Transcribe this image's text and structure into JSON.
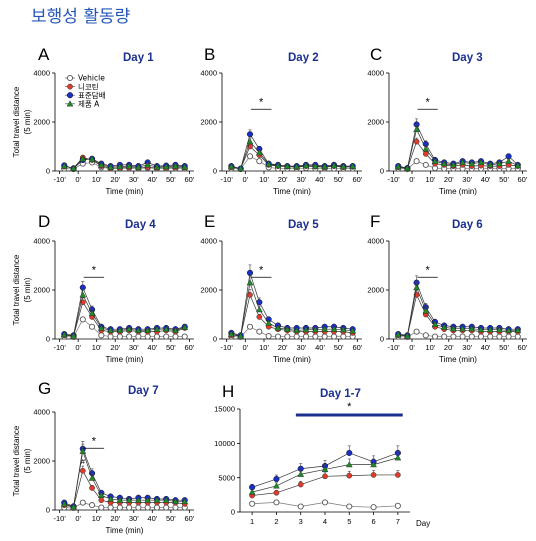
{
  "title": "보행성 활동량",
  "legend": [
    "Vehicle",
    "니코틴",
    "표준담배",
    "제품 A"
  ],
  "colors": {
    "Vehicle": "#ffffff",
    "니코틴": "#e03a2a",
    "표준담배": "#1a2fc8",
    "제품 A": "#1f8a2a",
    "title": "#2457b8",
    "panelTitle": "#1b2f8f",
    "bar": "#1b2f8f"
  },
  "timeAxis": {
    "ylim": [
      0,
      4000
    ],
    "yticks": [
      "0",
      "2000",
      "4000"
    ],
    "xticks": [
      "-10'",
      "0'",
      "10'",
      "20'",
      "30'",
      "40'",
      "50'",
      "60'"
    ],
    "xlabel": "Time (min)",
    "ylabel": "Total travel distance\n(5 min)"
  },
  "chart_data": [
    {
      "type": "line",
      "panel": "A",
      "title": "Day 1",
      "x": [
        -7.5,
        -2.5,
        2.5,
        7.5,
        12.5,
        17.5,
        22.5,
        27.5,
        32.5,
        37.5,
        42.5,
        47.5,
        52.5,
        57.5
      ],
      "series": [
        {
          "name": "Vehicle",
          "values": [
            100,
            80,
            300,
            350,
            150,
            100,
            100,
            120,
            100,
            130,
            100,
            100,
            110,
            100
          ]
        },
        {
          "name": "니코틴",
          "values": [
            180,
            120,
            550,
            450,
            200,
            120,
            130,
            150,
            130,
            160,
            130,
            130,
            150,
            140
          ]
        },
        {
          "name": "표준담배",
          "values": [
            230,
            100,
            450,
            500,
            300,
            200,
            250,
            250,
            200,
            350,
            200,
            220,
            250,
            200
          ]
        },
        {
          "name": "제품 A",
          "values": [
            200,
            110,
            500,
            480,
            250,
            160,
            180,
            200,
            160,
            250,
            160,
            180,
            200,
            170
          ]
        }
      ],
      "sig": null
    },
    {
      "type": "line",
      "panel": "B",
      "title": "Day 2",
      "x": [
        -7.5,
        -2.5,
        2.5,
        7.5,
        12.5,
        17.5,
        22.5,
        27.5,
        32.5,
        37.5,
        42.5,
        47.5,
        52.5,
        57.5
      ],
      "series": [
        {
          "name": "Vehicle",
          "values": [
            100,
            80,
            600,
            400,
            150,
            100,
            100,
            100,
            120,
            100,
            110,
            100,
            100,
            100
          ]
        },
        {
          "name": "니코틴",
          "values": [
            150,
            100,
            1000,
            650,
            250,
            200,
            180,
            150,
            200,
            180,
            150,
            200,
            150,
            170
          ]
        },
        {
          "name": "표준담배",
          "values": [
            200,
            100,
            1500,
            900,
            300,
            250,
            200,
            200,
            250,
            250,
            200,
            250,
            200,
            200
          ]
        },
        {
          "name": "제품 A",
          "values": [
            180,
            100,
            1200,
            750,
            280,
            220,
            190,
            180,
            220,
            200,
            180,
            220,
            180,
            190
          ]
        }
      ],
      "sig": {
        "x1": 3,
        "x2": 14,
        "label": "*"
      }
    },
    {
      "type": "line",
      "panel": "C",
      "title": "Day 3",
      "x": [
        -7.5,
        -2.5,
        2.5,
        7.5,
        12.5,
        17.5,
        22.5,
        27.5,
        32.5,
        37.5,
        42.5,
        47.5,
        52.5,
        57.5
      ],
      "series": [
        {
          "name": "Vehicle",
          "values": [
            100,
            80,
            400,
            250,
            120,
            100,
            100,
            100,
            100,
            100,
            100,
            100,
            100,
            100
          ]
        },
        {
          "name": "니코틴",
          "values": [
            150,
            100,
            1200,
            700,
            300,
            250,
            200,
            250,
            200,
            220,
            200,
            200,
            250,
            200
          ]
        },
        {
          "name": "표준담배",
          "values": [
            200,
            120,
            1900,
            1100,
            450,
            350,
            300,
            400,
            350,
            400,
            300,
            350,
            600,
            250
          ]
        },
        {
          "name": "제품 A",
          "values": [
            180,
            110,
            1700,
            900,
            400,
            300,
            250,
            350,
            300,
            350,
            250,
            300,
            400,
            220
          ]
        }
      ],
      "sig": {
        "x1": 3,
        "x2": 14,
        "label": "*"
      }
    },
    {
      "type": "line",
      "panel": "D",
      "title": "Day 4",
      "x": [
        -7.5,
        -2.5,
        2.5,
        7.5,
        12.5,
        17.5,
        22.5,
        27.5,
        32.5,
        37.5,
        42.5,
        47.5,
        52.5,
        57.5
      ],
      "series": [
        {
          "name": "Vehicle",
          "values": [
            100,
            80,
            800,
            500,
            150,
            100,
            100,
            100,
            100,
            100,
            100,
            100,
            100,
            100
          ]
        },
        {
          "name": "니코틴",
          "values": [
            150,
            120,
            1500,
            900,
            350,
            300,
            300,
            350,
            300,
            300,
            300,
            350,
            300,
            450
          ]
        },
        {
          "name": "표준담배",
          "values": [
            200,
            150,
            2100,
            1200,
            500,
            400,
            400,
            450,
            400,
            400,
            450,
            450,
            400,
            500
          ]
        },
        {
          "name": "제품 A",
          "values": [
            180,
            130,
            1800,
            1050,
            450,
            350,
            350,
            400,
            350,
            350,
            400,
            400,
            350,
            480
          ]
        }
      ],
      "sig": {
        "x1": 3,
        "x2": 14,
        "label": "*"
      }
    },
    {
      "type": "line",
      "panel": "E",
      "title": "Day 5",
      "x": [
        -7.5,
        -2.5,
        2.5,
        7.5,
        12.5,
        17.5,
        22.5,
        27.5,
        32.5,
        37.5,
        42.5,
        47.5,
        52.5,
        57.5
      ],
      "series": [
        {
          "name": "Vehicle",
          "values": [
            100,
            80,
            500,
            300,
            120,
            100,
            100,
            100,
            100,
            100,
            100,
            100,
            100,
            100
          ]
        },
        {
          "name": "니코틴",
          "values": [
            150,
            120,
            1800,
            900,
            500,
            400,
            350,
            300,
            300,
            300,
            300,
            300,
            300,
            250
          ]
        },
        {
          "name": "표준담배",
          "values": [
            250,
            150,
            2700,
            1500,
            800,
            550,
            450,
            450,
            450,
            450,
            500,
            500,
            450,
            400
          ]
        },
        {
          "name": "제품 A",
          "values": [
            200,
            130,
            2300,
            1200,
            650,
            450,
            400,
            350,
            380,
            380,
            400,
            400,
            380,
            330
          ]
        }
      ],
      "sig": {
        "x1": 3,
        "x2": 14,
        "label": "*"
      }
    },
    {
      "type": "line",
      "panel": "F",
      "title": "Day 6",
      "x": [
        -7.5,
        -2.5,
        2.5,
        7.5,
        12.5,
        17.5,
        22.5,
        27.5,
        32.5,
        37.5,
        42.5,
        47.5,
        52.5,
        57.5
      ],
      "series": [
        {
          "name": "Vehicle",
          "values": [
            100,
            80,
            300,
            150,
            100,
            100,
            100,
            100,
            100,
            100,
            100,
            100,
            100,
            100
          ]
        },
        {
          "name": "니코틴",
          "values": [
            150,
            120,
            1800,
            1000,
            500,
            400,
            350,
            350,
            350,
            300,
            300,
            300,
            300,
            300
          ]
        },
        {
          "name": "표준담배",
          "values": [
            200,
            150,
            2300,
            1300,
            700,
            550,
            500,
            500,
            500,
            450,
            450,
            450,
            400,
            400
          ]
        },
        {
          "name": "제품 A",
          "values": [
            180,
            130,
            2100,
            1150,
            600,
            480,
            420,
            420,
            420,
            380,
            380,
            380,
            350,
            350
          ]
        }
      ],
      "sig": {
        "x1": 3,
        "x2": 14,
        "label": "*"
      }
    },
    {
      "type": "line",
      "panel": "G",
      "title": "Day 7",
      "x": [
        -7.5,
        -2.5,
        2.5,
        7.5,
        12.5,
        17.5,
        22.5,
        27.5,
        32.5,
        37.5,
        42.5,
        47.5,
        52.5,
        57.5
      ],
      "series": [
        {
          "name": "Vehicle",
          "values": [
            100,
            80,
            300,
            200,
            100,
            100,
            100,
            100,
            100,
            100,
            100,
            100,
            100,
            100
          ]
        },
        {
          "name": "니코틴",
          "values": [
            200,
            120,
            1600,
            900,
            400,
            300,
            300,
            300,
            300,
            300,
            300,
            300,
            300,
            250
          ]
        },
        {
          "name": "표준담배",
          "values": [
            300,
            150,
            2500,
            1500,
            700,
            550,
            500,
            450,
            500,
            500,
            450,
            450,
            400,
            400
          ]
        },
        {
          "name": "제품 A",
          "values": [
            250,
            130,
            2400,
            1300,
            600,
            450,
            400,
            400,
            400,
            400,
            400,
            400,
            350,
            350
          ]
        }
      ],
      "sig": {
        "x1": 3,
        "x2": 14,
        "label": "*"
      },
      "extra_mark": {
        "x": 2.5,
        "y": 2000,
        "label": "#"
      }
    },
    {
      "type": "line",
      "panel": "H",
      "title": "Day 1-7",
      "x": [
        1,
        2,
        3,
        4,
        5,
        6,
        7
      ],
      "xticks": [
        "1",
        "2",
        "3",
        "4",
        "5",
        "6",
        "7"
      ],
      "xlabel": "Day",
      "ylim": [
        0,
        15000
      ],
      "yticks": [
        "0",
        "5000",
        "10000",
        "15000"
      ],
      "series": [
        {
          "name": "Vehicle",
          "values": [
            1200,
            1400,
            800,
            1400,
            800,
            700,
            900
          ]
        },
        {
          "name": "니코틴",
          "values": [
            2400,
            2800,
            4000,
            5200,
            5300,
            5400,
            5400
          ]
        },
        {
          "name": "표준담배",
          "values": [
            3600,
            4800,
            6300,
            6700,
            8600,
            7300,
            8600
          ]
        },
        {
          "name": "제품 A",
          "values": [
            2900,
            3800,
            5500,
            6200,
            6900,
            6900,
            7900
          ]
        }
      ],
      "sig": {
        "x1": 2.8,
        "x2": 7.2,
        "label": "*"
      }
    }
  ]
}
